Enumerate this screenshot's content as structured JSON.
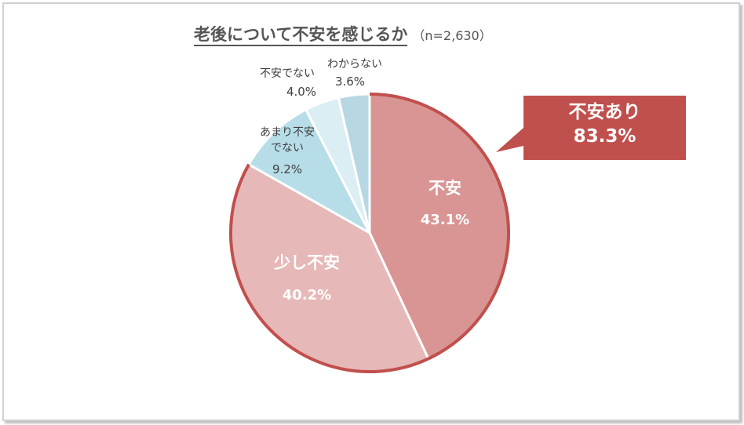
{
  "chart_data": {
    "type": "pie",
    "title": "老後について不安を感じるか",
    "subtitle": "（n=2,630）",
    "slices": [
      {
        "label": "不安",
        "value": 43.1,
        "value_label": "43.1%",
        "color": "#d99594"
      },
      {
        "label": "少し不安",
        "value": 40.2,
        "value_label": "40.2%",
        "color": "#e6b8b7"
      },
      {
        "label": "あまり不安でない",
        "value": 9.2,
        "value_label": "9.2%",
        "color": "#b7dde8"
      },
      {
        "label": "不安でない",
        "value": 4.0,
        "value_label": "4.0%",
        "color": "#daeef3"
      },
      {
        "label": "わからない",
        "value": 3.6,
        "value_label": "3.6%",
        "color": "#b7d7e3"
      }
    ],
    "callout": {
      "label": "不安あり",
      "value": 83.3,
      "value_label": "83.3%",
      "color": "#c0504d"
    },
    "highlight_outline_color": "#c0504d"
  }
}
